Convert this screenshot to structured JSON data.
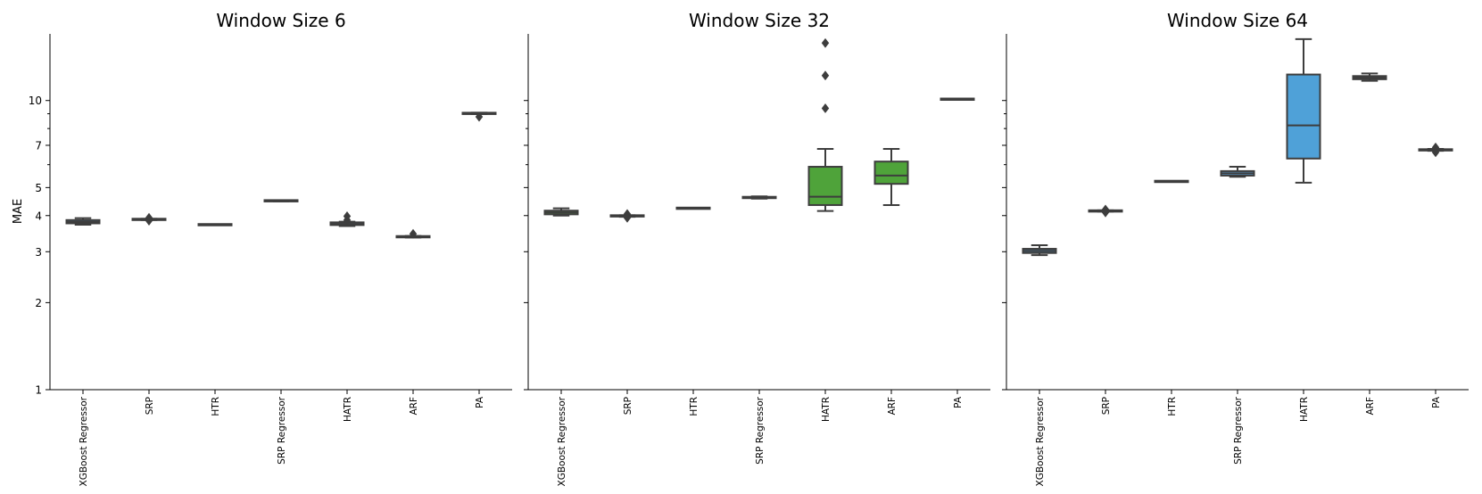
{
  "chart_data": {
    "type": "boxplot",
    "yscale": "log",
    "ylabel": "MAE",
    "ylim": [
      1,
      17
    ],
    "yticks_major": [
      1,
      2,
      3,
      4,
      5,
      7,
      10
    ],
    "yticks_minor": [
      6,
      8,
      9
    ],
    "ytick_labels": [
      "1",
      "2",
      "3",
      "4",
      "5",
      "7",
      "10"
    ],
    "grid": false,
    "categories": [
      "XGBoost Regressor",
      "SRP",
      "HTR",
      "SRP Regressor",
      "HATR",
      "ARF",
      "PA"
    ],
    "panels": [
      {
        "title": "Window Size 6",
        "boxes": [
          {
            "category": "XGBoost Regressor",
            "min": 3.72,
            "q1": 3.76,
            "median": 3.8,
            "q3": 3.86,
            "max": 3.92,
            "outliers": [],
            "color": "#4a6a82"
          },
          {
            "category": "SRP",
            "min": 3.86,
            "q1": 3.87,
            "median": 3.88,
            "q3": 3.89,
            "max": 3.9,
            "outliers": [
              3.93,
              3.84
            ],
            "color": "#4a6a82"
          },
          {
            "category": "HTR",
            "min": 3.72,
            "q1": 3.72,
            "median": 3.72,
            "q3": 3.72,
            "max": 3.72,
            "outliers": [],
            "color": "#4a6a82"
          },
          {
            "category": "SRP Regressor",
            "min": 4.48,
            "q1": 4.49,
            "median": 4.5,
            "q3": 4.51,
            "max": 4.52,
            "outliers": [],
            "color": "#4a6a82"
          },
          {
            "category": "HATR",
            "min": 3.68,
            "q1": 3.71,
            "median": 3.74,
            "q3": 3.79,
            "max": 3.81,
            "outliers": [
              3.98,
              3.86
            ],
            "color": "#4a6a82"
          },
          {
            "category": "ARF",
            "min": 3.36,
            "q1": 3.37,
            "median": 3.38,
            "q3": 3.39,
            "max": 3.4,
            "outliers": [
              3.46
            ],
            "color": "#4a6a82"
          },
          {
            "category": "PA",
            "min": 8.98,
            "q1": 9.0,
            "median": 9.02,
            "q3": 9.05,
            "max": 9.08,
            "outliers": [
              8.78
            ],
            "color": "#4a6a82"
          }
        ]
      },
      {
        "title": "Window Size 32",
        "boxes": [
          {
            "category": "XGBoost Regressor",
            "min": 4.0,
            "q1": 4.04,
            "median": 4.1,
            "q3": 4.16,
            "max": 4.24,
            "outliers": [],
            "color": "#4a8a3c"
          },
          {
            "category": "SRP",
            "min": 3.96,
            "q1": 3.98,
            "median": 3.99,
            "q3": 4.0,
            "max": 4.01,
            "outliers": [
              4.05,
              3.93
            ],
            "color": "#4a8a3c"
          },
          {
            "category": "HTR",
            "min": 4.24,
            "q1": 4.24,
            "median": 4.24,
            "q3": 4.24,
            "max": 4.24,
            "outliers": [],
            "color": "#4a8a3c"
          },
          {
            "category": "SRP Regressor",
            "min": 4.58,
            "q1": 4.6,
            "median": 4.62,
            "q3": 4.64,
            "max": 4.66,
            "outliers": [],
            "color": "#4a8a3c"
          },
          {
            "category": "HATR",
            "min": 4.15,
            "q1": 4.35,
            "median": 4.65,
            "q3": 5.9,
            "max": 6.8,
            "outliers": [
              9.4,
              12.2,
              15.8
            ],
            "color": "#4fa33a"
          },
          {
            "category": "ARF",
            "min": 4.35,
            "q1": 5.15,
            "median": 5.5,
            "q3": 6.15,
            "max": 6.8,
            "outliers": [],
            "color": "#4fa33a"
          },
          {
            "category": "PA",
            "min": 10.05,
            "q1": 10.08,
            "median": 10.1,
            "q3": 10.13,
            "max": 10.16,
            "outliers": [],
            "color": "#4a8a3c"
          }
        ]
      },
      {
        "title": "Window Size 64",
        "boxes": [
          {
            "category": "XGBoost Regressor",
            "min": 2.92,
            "q1": 2.97,
            "median": 3.02,
            "q3": 3.07,
            "max": 3.16,
            "outliers": [],
            "color": "#4a7fa8"
          },
          {
            "category": "SRP",
            "min": 4.13,
            "q1": 4.14,
            "median": 4.15,
            "q3": 4.16,
            "max": 4.17,
            "outliers": [
              4.2,
              4.1
            ],
            "color": "#4a7fa8"
          },
          {
            "category": "HTR",
            "min": 5.25,
            "q1": 5.25,
            "median": 5.25,
            "q3": 5.25,
            "max": 5.25,
            "outliers": [],
            "color": "#4a7fa8"
          },
          {
            "category": "SRP Regressor",
            "min": 5.45,
            "q1": 5.5,
            "median": 5.6,
            "q3": 5.7,
            "max": 5.9,
            "outliers": [],
            "color": "#5b9bd0"
          },
          {
            "category": "HATR",
            "min": 5.2,
            "q1": 6.3,
            "median": 8.2,
            "q3": 12.3,
            "max": 16.3,
            "outliers": [],
            "color": "#4fa1d8"
          },
          {
            "category": "ARF",
            "min": 11.7,
            "q1": 11.85,
            "median": 12.0,
            "q3": 12.15,
            "max": 12.4,
            "outliers": [],
            "color": "#4a7fa8"
          },
          {
            "category": "PA",
            "min": 6.7,
            "q1": 6.72,
            "median": 6.75,
            "q3": 6.78,
            "max": 6.8,
            "outliers": [
              6.88,
              6.62
            ],
            "color": "#4a7fa8"
          }
        ]
      }
    ]
  }
}
